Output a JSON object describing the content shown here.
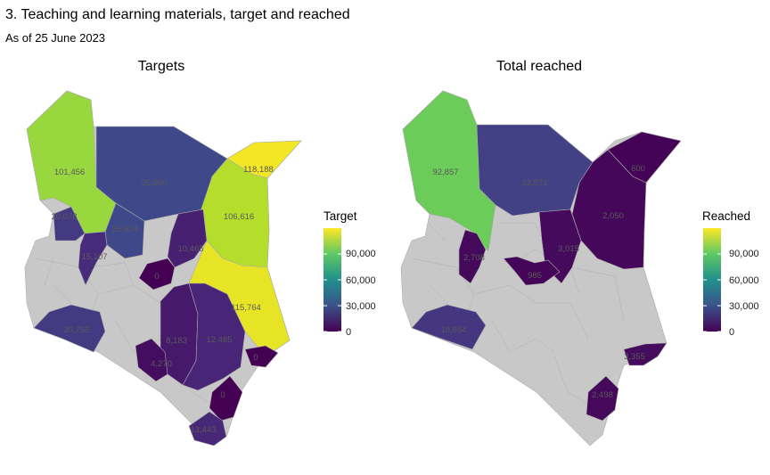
{
  "header": {
    "title": "3. Teaching and learning materials, target and reached",
    "subtitle": "As of 25 June 2023"
  },
  "colors": {
    "no_data": "#c8c8c8",
    "border": "#a8a8a8",
    "viridis": [
      "#440154",
      "#31688e",
      "#35b779",
      "#fde725"
    ]
  },
  "maps": [
    {
      "title": "Targets",
      "legend": {
        "title": "Target",
        "ticks": [
          "90,000",
          "60,000",
          "30,000",
          "0"
        ],
        "tick_values": [
          90000,
          60000,
          30000,
          0
        ],
        "max": 120000
      },
      "regions": [
        {
          "label": "101,456",
          "value": 101456
        },
        {
          "label": "25,900",
          "value": 25900
        },
        {
          "label": "118,188",
          "value": 118188
        },
        {
          "label": "106,616",
          "value": 106616
        },
        {
          "label": "20,078",
          "value": 20078
        },
        {
          "label": "25,924",
          "value": 25924
        },
        {
          "label": "10,465",
          "value": 10465
        },
        {
          "label": "15,107",
          "value": 15107
        },
        {
          "label": "0",
          "value": 0
        },
        {
          "label": "115,764",
          "value": 115764
        },
        {
          "label": "20,755",
          "value": 20755
        },
        {
          "label": "8,183",
          "value": 8183
        },
        {
          "label": "12,485",
          "value": 12485
        },
        {
          "label": "4,270",
          "value": 4270
        },
        {
          "label": "0",
          "value": 0
        },
        {
          "label": "0",
          "value": 0
        },
        {
          "label": "13,443",
          "value": 13443
        }
      ]
    },
    {
      "title": "Total reached",
      "legend": {
        "title": "Reached",
        "ticks": [
          "90,000",
          "60,000",
          "30,000",
          "0"
        ],
        "tick_values": [
          90000,
          60000,
          30000,
          0
        ],
        "max": 120000
      },
      "regions": [
        {
          "label": "92,857",
          "value": 92857
        },
        {
          "label": "22,871",
          "value": 22871
        },
        {
          "label": "600",
          "value": 600
        },
        {
          "label": "2,050",
          "value": 2050
        },
        {
          "label": "3,015",
          "value": 3015
        },
        {
          "label": "2,708",
          "value": 2708
        },
        {
          "label": "985",
          "value": 985
        },
        {
          "label": "18,654",
          "value": 18654
        },
        {
          "label": "3,355",
          "value": 3355
        },
        {
          "label": "2,498",
          "value": 2498
        }
      ]
    }
  ]
}
